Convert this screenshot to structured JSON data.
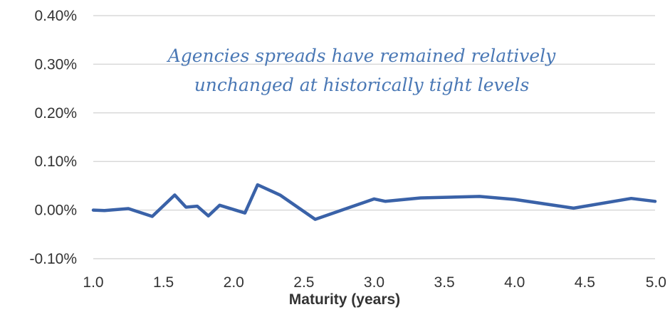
{
  "chart_data": {
    "type": "line",
    "title": "",
    "xlabel": "Maturity (years)",
    "ylabel": "",
    "xlim": [
      1.0,
      5.0
    ],
    "ylim": [
      -0.1,
      0.4
    ],
    "x_ticks": [
      1.0,
      1.5,
      2.0,
      2.5,
      3.0,
      3.5,
      4.0,
      4.5,
      5.0
    ],
    "x_tick_labels": [
      "1.0",
      "1.5",
      "2.0",
      "2.5",
      "3.0",
      "3.5",
      "4.0",
      "4.5",
      "5.0"
    ],
    "y_ticks": [
      -0.1,
      0.0,
      0.1,
      0.2,
      0.3,
      0.4
    ],
    "y_tick_labels": [
      "-0.10%",
      "0.00%",
      "0.10%",
      "0.20%",
      "0.30%",
      "0.40%"
    ],
    "grid": true,
    "legend": "none",
    "series_color": "#3a62a8",
    "annotation_color": "#4a78b5",
    "annotation": [
      "Agencies spreads have remained relatively",
      "unchanged at historically tight levels"
    ],
    "series": [
      {
        "x": [
          1.0,
          1.08,
          1.25,
          1.42,
          1.58,
          1.66,
          1.74,
          1.82,
          1.9,
          2.08,
          2.17,
          2.33,
          2.58,
          2.83,
          3.0,
          3.08,
          3.33,
          3.75,
          4.0,
          4.42,
          4.83,
          5.0
        ],
        "y": [
          0.0,
          -0.001,
          0.003,
          -0.013,
          0.031,
          0.006,
          0.008,
          -0.012,
          0.01,
          -0.006,
          0.052,
          0.031,
          -0.019,
          0.006,
          0.023,
          0.018,
          0.025,
          0.028,
          0.022,
          0.004,
          0.024,
          0.018
        ]
      }
    ]
  }
}
